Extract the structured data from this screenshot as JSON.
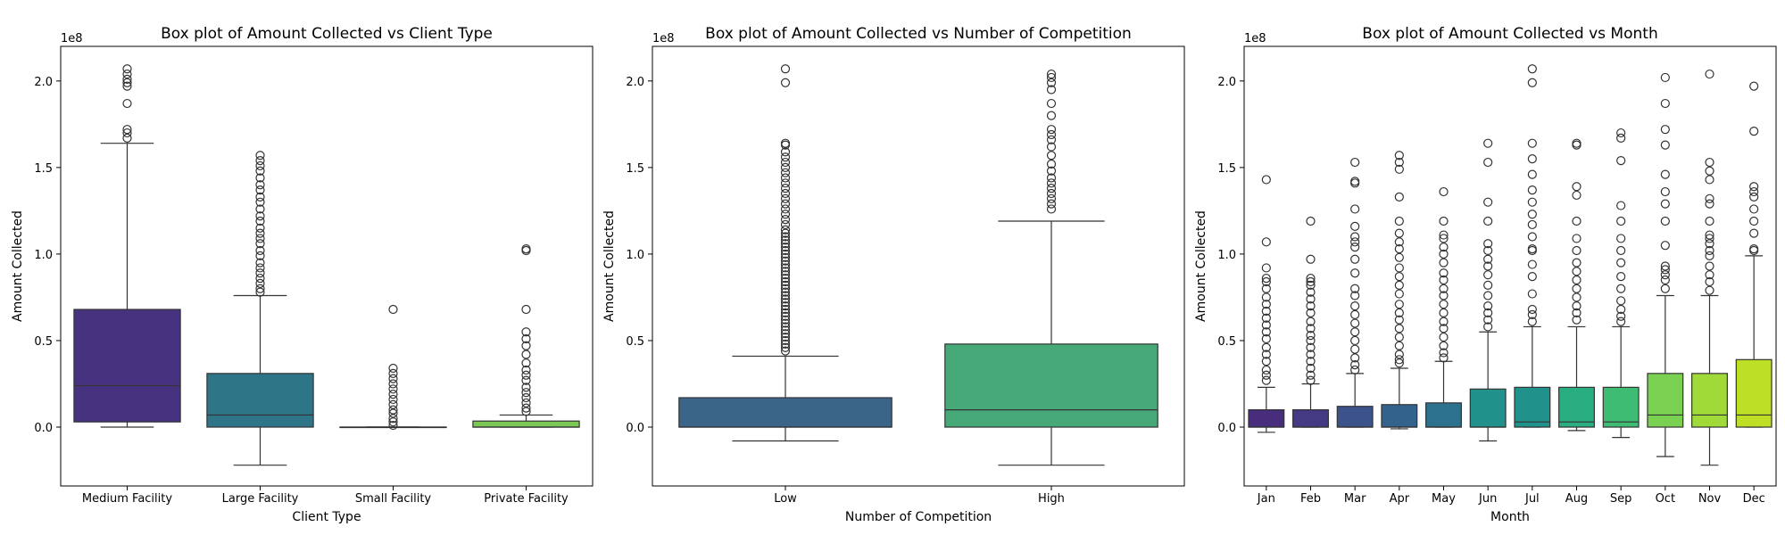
{
  "chart_data": [
    {
      "type": "box",
      "title": "Box plot of Amount Collected vs Client Type",
      "xlabel": "Client Type",
      "ylabel": "Amount Collected",
      "offset_label": "1e8",
      "yticks": [
        "0.0",
        "0.5",
        "1.0",
        "1.5",
        "2.0"
      ],
      "categories": [
        "Medium Facility",
        "Large Facility",
        "Small Facility",
        "Private Facility"
      ],
      "colors": [
        "#46327e",
        "#2e7588",
        "#2a9f85",
        "#7ac855"
      ],
      "boxes": [
        {
          "whislo": 0.0,
          "q1": 0.03,
          "med": 0.24,
          "q3": 0.68,
          "whishi": 1.64,
          "fliers": [
            1.67,
            1.7,
            1.72,
            1.87,
            1.97,
            1.99,
            2.01,
            2.04,
            2.07
          ]
        },
        {
          "whislo": -0.22,
          "q1": 0.0,
          "med": 0.07,
          "q3": 0.31,
          "whishi": 0.76,
          "fliers": [
            0.78,
            0.8,
            0.83,
            0.86,
            0.89,
            0.92,
            0.95,
            0.99,
            1.02,
            1.06,
            1.09,
            1.12,
            1.15,
            1.19,
            1.22,
            1.26,
            1.3,
            1.33,
            1.37,
            1.4,
            1.44,
            1.48,
            1.51,
            1.54,
            1.57
          ]
        },
        {
          "whislo": 0.0,
          "q1": 0.0,
          "med": 0.0,
          "q3": 0.0,
          "whishi": 0.0,
          "fliers": [
            0.01,
            0.03,
            0.05,
            0.08,
            0.1,
            0.13,
            0.16,
            0.19,
            0.22,
            0.25,
            0.28,
            0.31,
            0.34,
            0.68
          ]
        },
        {
          "whislo": 0.0,
          "q1": 0.0,
          "med": 0.0,
          "q3": 0.035,
          "whishi": 0.07,
          "fliers": [
            0.09,
            0.11,
            0.14,
            0.17,
            0.2,
            0.23,
            0.27,
            0.3,
            0.33,
            0.37,
            0.42,
            0.47,
            0.51,
            0.55,
            0.68,
            1.02,
            1.03
          ]
        }
      ]
    },
    {
      "type": "box",
      "title": "Box plot of Amount Collected vs Number of Competition",
      "xlabel": "Number of Competition",
      "ylabel": "Amount Collected",
      "offset_label": "1e8",
      "yticks": [
        "0.0",
        "0.5",
        "1.0",
        "1.5",
        "2.0"
      ],
      "categories": [
        "Low",
        "High"
      ],
      "colors": [
        "#3b6489",
        "#46a977"
      ],
      "boxes": [
        {
          "whislo": -0.08,
          "q1": 0.0,
          "med": 0.0,
          "q3": 0.17,
          "whishi": 0.41,
          "fliers": [
            0.44,
            0.46,
            0.48,
            0.5,
            0.52,
            0.54,
            0.56,
            0.58,
            0.6,
            0.62,
            0.64,
            0.66,
            0.68,
            0.7,
            0.72,
            0.74,
            0.76,
            0.78,
            0.8,
            0.82,
            0.84,
            0.86,
            0.88,
            0.9,
            0.92,
            0.94,
            0.96,
            0.98,
            1.0,
            1.02,
            1.04,
            1.06,
            1.08,
            1.1,
            1.12,
            1.14,
            1.17,
            1.2,
            1.23,
            1.26,
            1.29,
            1.32,
            1.35,
            1.38,
            1.41,
            1.44,
            1.47,
            1.5,
            1.53,
            1.56,
            1.59,
            1.63,
            1.64,
            1.99,
            2.07
          ]
        },
        {
          "whislo": -0.22,
          "q1": 0.0,
          "med": 0.1,
          "q3": 0.48,
          "whishi": 1.19,
          "fliers": [
            1.26,
            1.29,
            1.32,
            1.35,
            1.38,
            1.41,
            1.44,
            1.48,
            1.52,
            1.57,
            1.62,
            1.66,
            1.69,
            1.72,
            1.8,
            1.87,
            1.95,
            1.99,
            2.02,
            2.04
          ]
        }
      ]
    },
    {
      "type": "box",
      "title": "Box plot of Amount Collected vs Month",
      "xlabel": "Month",
      "ylabel": "Amount Collected",
      "offset_label": "1e8",
      "yticks": [
        "0.0",
        "0.5",
        "1.0",
        "1.5",
        "2.0"
      ],
      "categories": [
        "Jan",
        "Feb",
        "Mar",
        "Apr",
        "May",
        "Jun",
        "Jul",
        "Aug",
        "Sep",
        "Oct",
        "Nov",
        "Dec"
      ],
      "colors": [
        "#472d7b",
        "#443a83",
        "#3b528b",
        "#33638d",
        "#2c728e",
        "#21918c",
        "#21918c",
        "#28ae80",
        "#3fbc73",
        "#7ad151",
        "#a0da39",
        "#bddf26"
      ],
      "boxes": [
        {
          "whislo": -0.03,
          "q1": 0.0,
          "med": 0.0,
          "q3": 0.1,
          "whishi": 0.23,
          "fliers": [
            0.27,
            0.3,
            0.33,
            0.38,
            0.42,
            0.46,
            0.51,
            0.55,
            0.59,
            0.63,
            0.67,
            0.71,
            0.75,
            0.8,
            0.84,
            0.86,
            0.92,
            1.07,
            1.43
          ]
        },
        {
          "whislo": 0.0,
          "q1": 0.0,
          "med": 0.0,
          "q3": 0.1,
          "whishi": 0.25,
          "fliers": [
            0.27,
            0.3,
            0.34,
            0.38,
            0.42,
            0.46,
            0.5,
            0.53,
            0.57,
            0.61,
            0.66,
            0.7,
            0.74,
            0.78,
            0.82,
            0.84,
            0.86,
            0.97,
            1.19
          ]
        },
        {
          "whislo": 0.0,
          "q1": 0.0,
          "med": 0.0,
          "q3": 0.12,
          "whishi": 0.31,
          "fliers": [
            0.33,
            0.36,
            0.4,
            0.45,
            0.5,
            0.55,
            0.6,
            0.65,
            0.7,
            0.76,
            0.8,
            0.89,
            0.97,
            1.04,
            1.07,
            1.1,
            1.16,
            1.26,
            1.41,
            1.42,
            1.53
          ]
        },
        {
          "whislo": -0.01,
          "q1": 0.0,
          "med": 0.0,
          "q3": 0.13,
          "whishi": 0.34,
          "fliers": [
            0.37,
            0.39,
            0.42,
            0.47,
            0.52,
            0.57,
            0.62,
            0.66,
            0.71,
            0.77,
            0.82,
            0.87,
            0.92,
            0.98,
            1.03,
            1.07,
            1.12,
            1.19,
            1.33,
            1.49,
            1.53,
            1.57
          ]
        },
        {
          "whislo": 0.0,
          "q1": 0.0,
          "med": 0.0,
          "q3": 0.14,
          "whishi": 0.38,
          "fliers": [
            0.4,
            0.43,
            0.47,
            0.52,
            0.57,
            0.61,
            0.66,
            0.71,
            0.76,
            0.8,
            0.85,
            0.89,
            0.95,
            1.0,
            1.04,
            1.09,
            1.11,
            1.19,
            1.36
          ]
        },
        {
          "whislo": -0.08,
          "q1": 0.0,
          "med": 0.0,
          "q3": 0.22,
          "whishi": 0.55,
          "fliers": [
            0.58,
            0.62,
            0.66,
            0.7,
            0.76,
            0.82,
            0.88,
            0.93,
            0.97,
            1.02,
            1.06,
            1.19,
            1.3,
            1.53,
            1.64
          ]
        },
        {
          "whislo": 0.0,
          "q1": 0.0,
          "med": 0.03,
          "q3": 0.23,
          "whishi": 0.58,
          "fliers": [
            0.61,
            0.65,
            0.68,
            0.77,
            0.87,
            0.94,
            1.02,
            1.03,
            1.1,
            1.17,
            1.23,
            1.3,
            1.37,
            1.46,
            1.55,
            1.64,
            1.99,
            2.07
          ]
        },
        {
          "whislo": -0.02,
          "q1": 0.0,
          "med": 0.03,
          "q3": 0.23,
          "whishi": 0.58,
          "fliers": [
            0.62,
            0.66,
            0.7,
            0.75,
            0.8,
            0.85,
            0.9,
            0.95,
            1.02,
            1.09,
            1.19,
            1.34,
            1.39,
            1.63,
            1.64
          ]
        },
        {
          "whislo": -0.06,
          "q1": 0.0,
          "med": 0.03,
          "q3": 0.23,
          "whishi": 0.58,
          "fliers": [
            0.61,
            0.64,
            0.68,
            0.73,
            0.8,
            0.87,
            0.95,
            1.02,
            1.09,
            1.19,
            1.28,
            1.54,
            1.67,
            1.7
          ]
        },
        {
          "whislo": -0.17,
          "q1": 0.0,
          "med": 0.07,
          "q3": 0.31,
          "whishi": 0.76,
          "fliers": [
            0.8,
            0.85,
            0.88,
            0.91,
            0.93,
            1.05,
            1.19,
            1.29,
            1.36,
            1.46,
            1.63,
            1.72,
            1.87,
            2.02
          ]
        },
        {
          "whislo": -0.22,
          "q1": 0.0,
          "med": 0.07,
          "q3": 0.31,
          "whishi": 0.76,
          "fliers": [
            0.79,
            0.84,
            0.88,
            0.93,
            0.99,
            1.02,
            1.06,
            1.09,
            1.11,
            1.19,
            1.29,
            1.32,
            1.43,
            1.48,
            1.53,
            2.04
          ]
        },
        {
          "whislo": 0.0,
          "q1": 0.0,
          "med": 0.07,
          "q3": 0.39,
          "whishi": 0.99,
          "fliers": [
            1.02,
            1.03,
            1.12,
            1.19,
            1.26,
            1.33,
            1.36,
            1.39,
            1.71,
            1.97
          ]
        }
      ]
    }
  ]
}
